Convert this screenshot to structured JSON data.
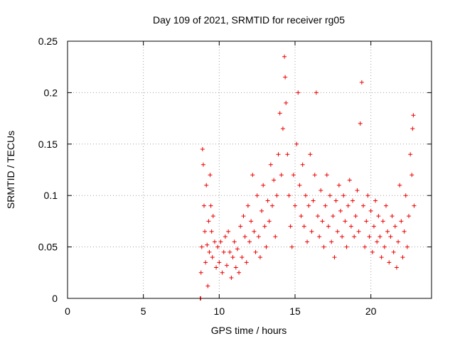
{
  "chart_data": {
    "type": "scatter",
    "title": "Day 109 of 2021, SRMTID for receiver rg05",
    "xlabel": "GPS time / hours",
    "ylabel": "SRMTID / TECUs",
    "xlim": [
      0,
      24
    ],
    "ylim": [
      0,
      0.25
    ],
    "grid": true,
    "marker": "+",
    "color": "#ee0000",
    "xticks": [
      0,
      5,
      10,
      15,
      20
    ],
    "xtick_labels": [
      "0",
      "5",
      "10",
      "15",
      "20"
    ],
    "yticks": [
      0,
      0.05,
      0.1,
      0.15,
      0.2,
      0.25
    ],
    "ytick_labels": [
      "0",
      "0.05",
      "0.1",
      "0.15",
      "0.2",
      "0.25"
    ],
    "series": [
      {
        "name": "rg05",
        "points": [
          [
            8.75,
            0.0
          ],
          [
            8.78,
            0.0
          ],
          [
            8.8,
            0.025
          ],
          [
            8.85,
            0.05
          ],
          [
            8.9,
            0.145
          ],
          [
            8.95,
            0.13
          ],
          [
            9.0,
            0.09
          ],
          [
            9.05,
            0.065
          ],
          [
            9.1,
            0.035
          ],
          [
            9.15,
            0.11
          ],
          [
            9.2,
            0.052
          ],
          [
            9.25,
            0.012
          ],
          [
            9.3,
            0.075
          ],
          [
            9.35,
            0.045
          ],
          [
            9.4,
            0.12
          ],
          [
            9.45,
            0.09
          ],
          [
            9.5,
            0.065
          ],
          [
            9.55,
            0.04
          ],
          [
            9.6,
            0.08
          ],
          [
            9.7,
            0.055
          ],
          [
            9.8,
            0.03
          ],
          [
            9.9,
            0.05
          ],
          [
            10.0,
            0.035
          ],
          [
            10.1,
            0.055
          ],
          [
            10.2,
            0.025
          ],
          [
            10.3,
            0.045
          ],
          [
            10.4,
            0.06
          ],
          [
            10.5,
            0.032
          ],
          [
            10.6,
            0.065
          ],
          [
            10.7,
            0.045
          ],
          [
            10.8,
            0.02
          ],
          [
            10.9,
            0.04
          ],
          [
            11.0,
            0.055
          ],
          [
            11.1,
            0.03
          ],
          [
            11.2,
            0.048
          ],
          [
            11.3,
            0.025
          ],
          [
            11.4,
            0.07
          ],
          [
            11.5,
            0.04
          ],
          [
            11.6,
            0.08
          ],
          [
            11.7,
            0.06
          ],
          [
            11.8,
            0.035
          ],
          [
            11.9,
            0.09
          ],
          [
            12.0,
            0.055
          ],
          [
            12.1,
            0.075
          ],
          [
            12.2,
            0.12
          ],
          [
            12.3,
            0.065
          ],
          [
            12.4,
            0.045
          ],
          [
            12.5,
            0.1
          ],
          [
            12.6,
            0.06
          ],
          [
            12.7,
            0.04
          ],
          [
            12.8,
            0.085
          ],
          [
            12.9,
            0.11
          ],
          [
            13.0,
            0.07
          ],
          [
            13.1,
            0.05
          ],
          [
            13.2,
            0.095
          ],
          [
            13.3,
            0.075
          ],
          [
            13.4,
            0.13
          ],
          [
            13.5,
            0.09
          ],
          [
            13.6,
            0.115
          ],
          [
            13.7,
            0.06
          ],
          [
            13.8,
            0.1
          ],
          [
            13.9,
            0.14
          ],
          [
            14.0,
            0.18
          ],
          [
            14.1,
            0.12
          ],
          [
            14.2,
            0.165
          ],
          [
            14.3,
            0.235
          ],
          [
            14.35,
            0.215
          ],
          [
            14.4,
            0.19
          ],
          [
            14.5,
            0.14
          ],
          [
            14.6,
            0.1
          ],
          [
            14.7,
            0.07
          ],
          [
            14.8,
            0.05
          ],
          [
            14.9,
            0.12
          ],
          [
            15.0,
            0.09
          ],
          [
            15.1,
            0.15
          ],
          [
            15.2,
            0.2
          ],
          [
            15.3,
            0.11
          ],
          [
            15.4,
            0.08
          ],
          [
            15.5,
            0.13
          ],
          [
            15.6,
            0.07
          ],
          [
            15.7,
            0.1
          ],
          [
            15.8,
            0.055
          ],
          [
            15.9,
            0.09
          ],
          [
            16.0,
            0.14
          ],
          [
            16.1,
            0.065
          ],
          [
            16.2,
            0.095
          ],
          [
            16.3,
            0.12
          ],
          [
            16.4,
            0.2
          ],
          [
            16.5,
            0.08
          ],
          [
            16.6,
            0.06
          ],
          [
            16.7,
            0.105
          ],
          [
            16.8,
            0.075
          ],
          [
            16.9,
            0.05
          ],
          [
            17.0,
            0.09
          ],
          [
            17.1,
            0.12
          ],
          [
            17.2,
            0.07
          ],
          [
            17.3,
            0.1
          ],
          [
            17.4,
            0.055
          ],
          [
            17.5,
            0.08
          ],
          [
            17.6,
            0.04
          ],
          [
            17.7,
            0.095
          ],
          [
            17.8,
            0.065
          ],
          [
            17.9,
            0.11
          ],
          [
            18.0,
            0.085
          ],
          [
            18.1,
            0.06
          ],
          [
            18.2,
            0.1
          ],
          [
            18.3,
            0.075
          ],
          [
            18.4,
            0.05
          ],
          [
            18.5,
            0.09
          ],
          [
            18.6,
            0.115
          ],
          [
            18.7,
            0.07
          ],
          [
            18.8,
            0.095
          ],
          [
            18.9,
            0.06
          ],
          [
            19.0,
            0.08
          ],
          [
            19.1,
            0.105
          ],
          [
            19.2,
            0.065
          ],
          [
            19.3,
            0.17
          ],
          [
            19.4,
            0.21
          ],
          [
            19.5,
            0.09
          ],
          [
            19.6,
            0.05
          ],
          [
            19.7,
            0.075
          ],
          [
            19.8,
            0.1
          ],
          [
            19.9,
            0.06
          ],
          [
            20.0,
            0.085
          ],
          [
            20.1,
            0.045
          ],
          [
            20.2,
            0.07
          ],
          [
            20.3,
            0.095
          ],
          [
            20.4,
            0.055
          ],
          [
            20.5,
            0.08
          ],
          [
            20.6,
            0.06
          ],
          [
            20.7,
            0.04
          ],
          [
            20.8,
            0.075
          ],
          [
            20.9,
            0.05
          ],
          [
            21.0,
            0.09
          ],
          [
            21.1,
            0.065
          ],
          [
            21.2,
            0.035
          ],
          [
            21.3,
            0.06
          ],
          [
            21.4,
            0.08
          ],
          [
            21.5,
            0.045
          ],
          [
            21.6,
            0.07
          ],
          [
            21.7,
            0.03
          ],
          [
            21.8,
            0.055
          ],
          [
            21.9,
            0.11
          ],
          [
            22.0,
            0.075
          ],
          [
            22.1,
            0.04
          ],
          [
            22.2,
            0.065
          ],
          [
            22.3,
            0.1
          ],
          [
            22.4,
            0.05
          ],
          [
            22.5,
            0.08
          ],
          [
            22.6,
            0.14
          ],
          [
            22.7,
            0.12
          ],
          [
            22.75,
            0.165
          ],
          [
            22.8,
            0.178
          ],
          [
            22.85,
            0.09
          ]
        ]
      }
    ]
  }
}
